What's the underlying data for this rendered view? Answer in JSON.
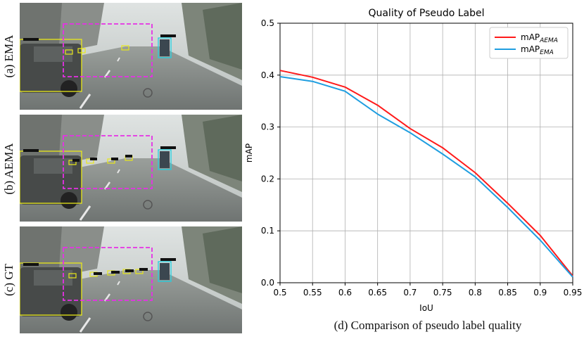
{
  "panels": [
    {
      "label": "(a) EMA"
    },
    {
      "label": "(b) AEMA"
    },
    {
      "label": "(c) GT"
    }
  ],
  "colors": {
    "aema": "#ff1a1a",
    "ema": "#1f9ee0",
    "grid": "#b0b0b0",
    "box_yellow": "#e8e81a",
    "box_magenta": "#e630e6",
    "box_cyan": "#20d0e0"
  },
  "chart_data": {
    "type": "line",
    "title": "Quality of Pseudo Label",
    "xlabel": "IoU",
    "ylabel": "mAP",
    "x": [
      0.5,
      0.55,
      0.6,
      0.65,
      0.7,
      0.75,
      0.8,
      0.85,
      0.9,
      0.95
    ],
    "xticks": [
      "0.5",
      "0.55",
      "0.6",
      "0.65",
      "0.7",
      "0.75",
      "0.8",
      "0.85",
      "0.9",
      "0.95"
    ],
    "yticks": [
      "0.0",
      "0.1",
      "0.2",
      "0.3",
      "0.4",
      "0.5"
    ],
    "xlim": [
      0.5,
      0.95
    ],
    "ylim": [
      0.0,
      0.5
    ],
    "grid": true,
    "legend_position": "top-right",
    "series": [
      {
        "name": "mAP",
        "subscript": "AEMA",
        "color": "#ff1a1a",
        "values": [
          0.409,
          0.396,
          0.377,
          0.342,
          0.297,
          0.26,
          0.212,
          0.153,
          0.091,
          0.013
        ]
      },
      {
        "name": "mAP",
        "subscript": "EMA",
        "color": "#1f9ee0",
        "values": [
          0.397,
          0.388,
          0.369,
          0.325,
          0.289,
          0.248,
          0.204,
          0.145,
          0.082,
          0.011
        ]
      }
    ]
  },
  "caption": "(d) Comparison of pseudo label quality"
}
